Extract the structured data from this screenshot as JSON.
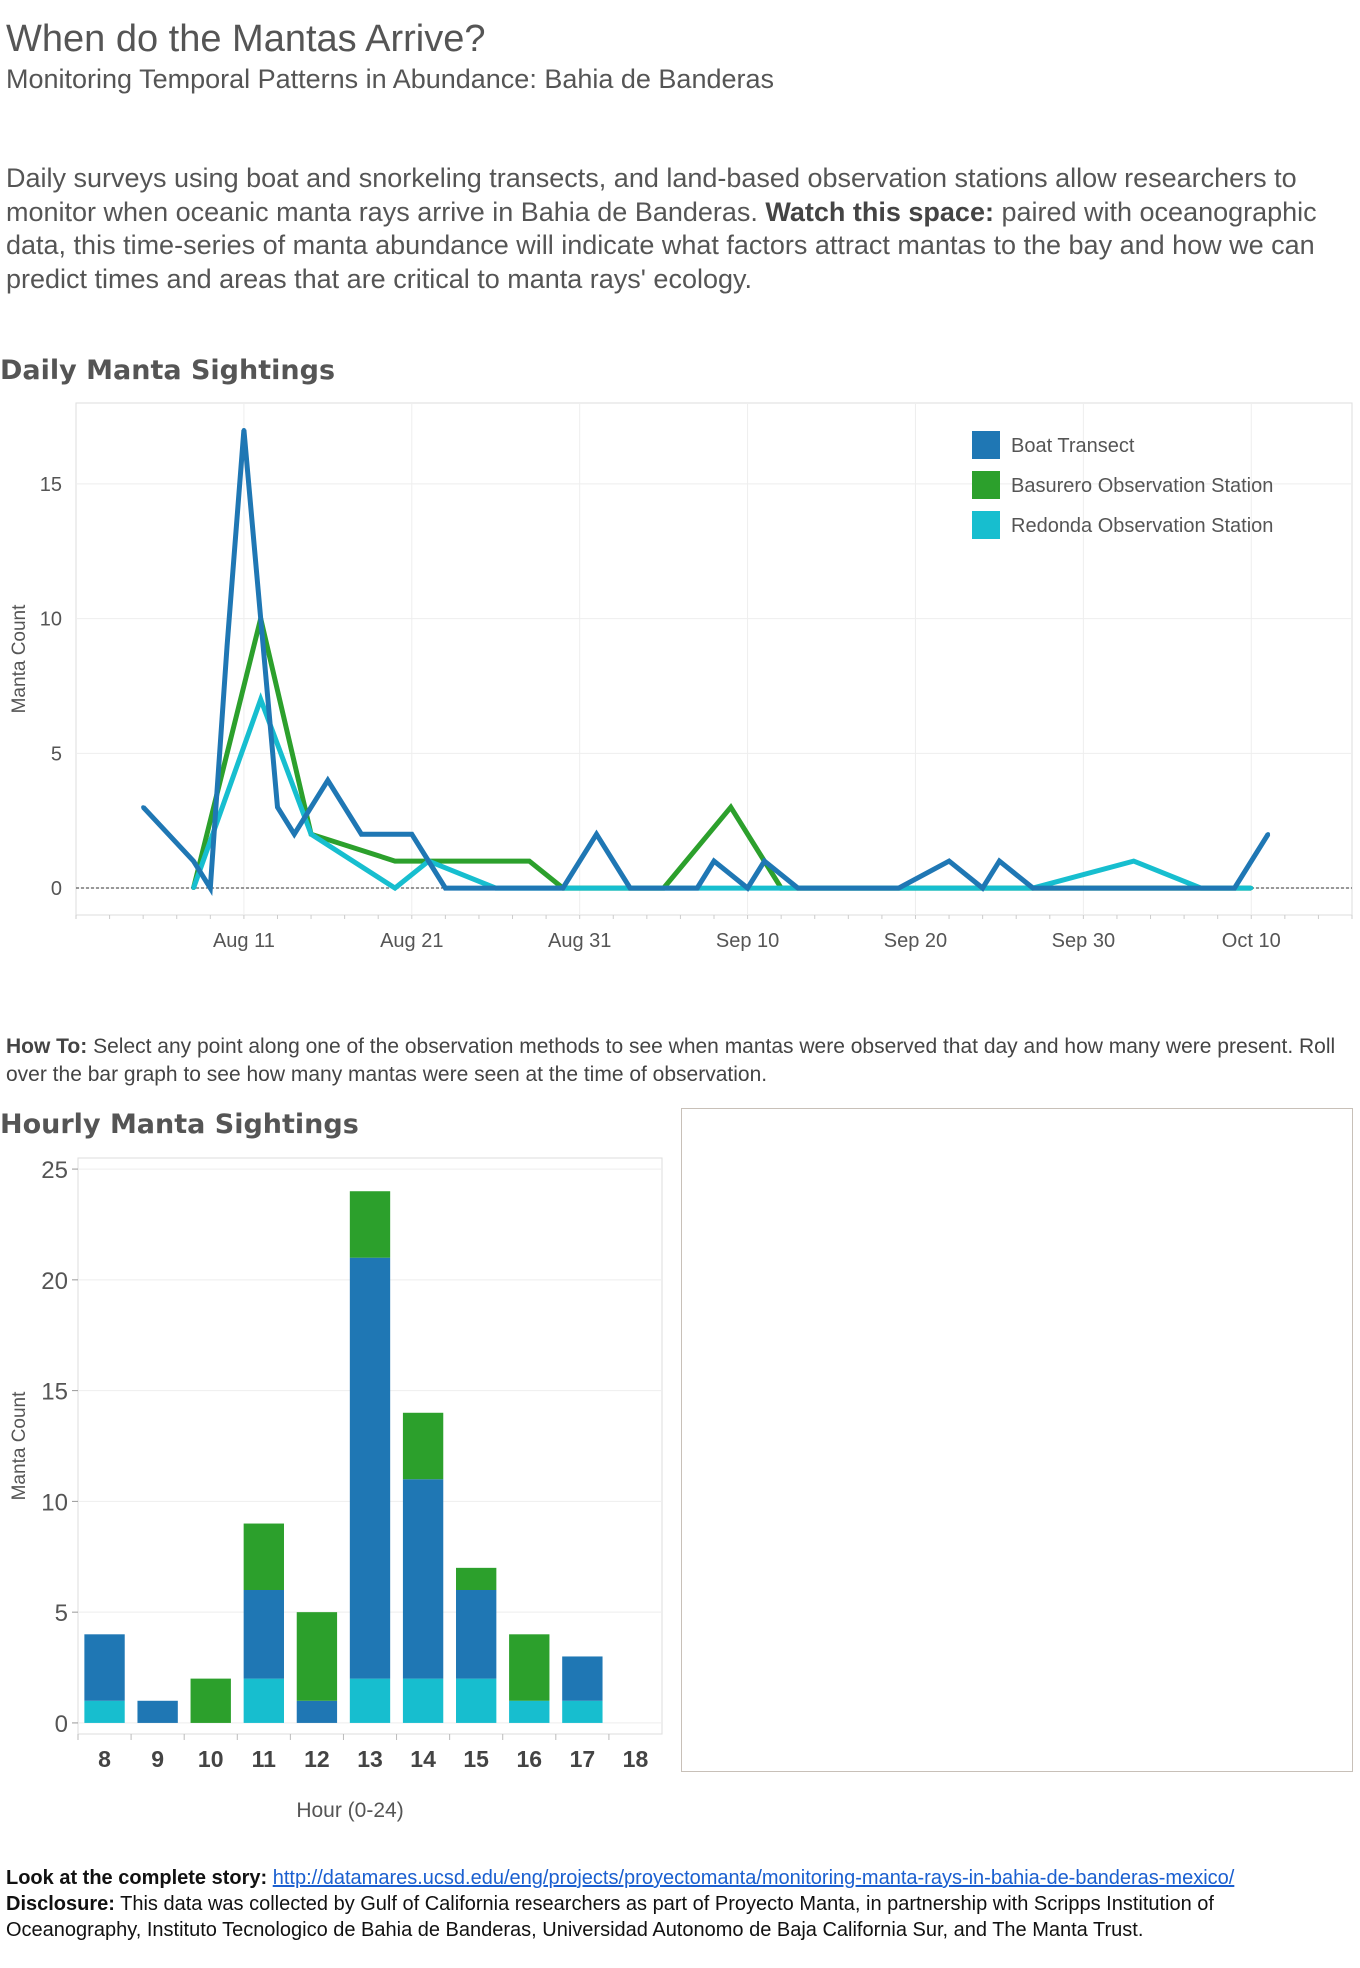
{
  "header": {
    "title": "When do the Mantas Arrive?",
    "subtitle": "Monitoring Temporal Patterns in Abundance: Bahia de Banderas",
    "intro_part1": "Daily surveys using boat and snorkeling transects, and land-based observation stations allow researchers to monitor when oceanic manta rays arrive in Bahia de Banderas. ",
    "intro_bold": "Watch this space:",
    "intro_part2": " paired with oceanographic data, this time-series of manta abundance will indicate what factors attract mantas to the bay and how we can predict times and areas that are critical to manta rays' ecology."
  },
  "howto": {
    "label": "How To:",
    "text": " Select any point along one of the observation methods to see when mantas were observed that day and how many were present. Roll over the bar graph to see how many mantas were seen at the time of observation."
  },
  "footer": {
    "story_label": "Look at the complete story:",
    "story_link": "http://datamares.ucsd.edu/eng/projects/proyectomanta/monitoring-manta-rays-in-bahia-de-banderas-mexico/",
    "disclosure_label": "Disclosure:",
    "disclosure_text": " This data was collected by Gulf of California researchers as part of Proyecto Manta, in partnership with Scripps Institution of Oceanography, Instituto Tecnologico de Bahia de Banderas, Universidad Autonomo de Baja California Sur, and The Manta Trust."
  },
  "colors": {
    "boat": "#1f77b4",
    "basurero": "#2ca02c",
    "redonda": "#17becf"
  },
  "chart_data": [
    {
      "type": "line",
      "title": "Daily Manta Sightings",
      "xlabel": "",
      "ylabel": "Manta Count",
      "x_ticks": [
        "Aug 11",
        "Aug 21",
        "Aug 31",
        "Sep 10",
        "Sep 20",
        "Sep 30",
        "Oct 10"
      ],
      "y_ticks": [
        0,
        5,
        10,
        15
      ],
      "ylim": [
        -1,
        18
      ],
      "xlim": [
        "2014-08-01",
        "2014-10-16"
      ],
      "grid": true,
      "legend": "top-right",
      "series": [
        {
          "name": "Boat Transect",
          "color": "#1f77b4",
          "points": [
            [
              "2014-08-05",
              3
            ],
            [
              "2014-08-08",
              1
            ],
            [
              "2014-08-09",
              0
            ],
            [
              "2014-08-10",
              9
            ],
            [
              "2014-08-11",
              17
            ],
            [
              "2014-08-13",
              3
            ],
            [
              "2014-08-14",
              2
            ],
            [
              "2014-08-16",
              4
            ],
            [
              "2014-08-18",
              2
            ],
            [
              "2014-08-21",
              2
            ],
            [
              "2014-08-23",
              0
            ],
            [
              "2014-08-30",
              0
            ],
            [
              "2014-09-01",
              2
            ],
            [
              "2014-09-03",
              0
            ],
            [
              "2014-09-07",
              0
            ],
            [
              "2014-09-08",
              1
            ],
            [
              "2014-09-10",
              0
            ],
            [
              "2014-09-11",
              1
            ],
            [
              "2014-09-13",
              0
            ],
            [
              "2014-09-19",
              0
            ],
            [
              "2014-09-22",
              1
            ],
            [
              "2014-09-24",
              0
            ],
            [
              "2014-09-25",
              1
            ],
            [
              "2014-09-27",
              0
            ],
            [
              "2014-10-09",
              0
            ],
            [
              "2014-10-11",
              2
            ]
          ]
        },
        {
          "name": "Basurero Observation Station",
          "color": "#2ca02c",
          "points": [
            [
              "2014-08-08",
              0
            ],
            [
              "2014-08-10",
              5
            ],
            [
              "2014-08-12",
              10
            ],
            [
              "2014-08-15",
              2
            ],
            [
              "2014-08-20",
              1
            ],
            [
              "2014-08-23",
              1
            ],
            [
              "2014-08-28",
              1
            ],
            [
              "2014-08-30",
              0
            ],
            [
              "2014-09-05",
              0
            ],
            [
              "2014-09-09",
              3
            ],
            [
              "2014-09-12",
              0
            ],
            [
              "2014-09-20",
              0
            ],
            [
              "2014-09-26",
              0
            ],
            [
              "2014-10-10",
              0
            ]
          ]
        },
        {
          "name": "Redonda Observation Station",
          "color": "#17becf",
          "points": [
            [
              "2014-08-08",
              0
            ],
            [
              "2014-08-12",
              7
            ],
            [
              "2014-08-15",
              2
            ],
            [
              "2014-08-20",
              0
            ],
            [
              "2014-08-22",
              1
            ],
            [
              "2014-08-26",
              0
            ],
            [
              "2014-09-27",
              0
            ],
            [
              "2014-10-03",
              1
            ],
            [
              "2014-10-07",
              0
            ],
            [
              "2014-10-10",
              0
            ]
          ]
        }
      ]
    },
    {
      "type": "bar",
      "stacked": true,
      "title": "Hourly Manta Sightings",
      "xlabel": "Hour (0-24)",
      "ylabel": "Manta Count",
      "categories": [
        "8",
        "9",
        "10",
        "11",
        "12",
        "13",
        "14",
        "15",
        "16",
        "17",
        "18"
      ],
      "y_ticks": [
        0,
        5,
        10,
        15,
        20,
        25
      ],
      "ylim": [
        -0.5,
        25.5
      ],
      "grid": true,
      "series": [
        {
          "name": "Redonda Observation Station",
          "color": "#17becf",
          "values": [
            1,
            0,
            0,
            2,
            0,
            2,
            2,
            2,
            1,
            1,
            0
          ]
        },
        {
          "name": "Boat Transect",
          "color": "#1f77b4",
          "values": [
            3,
            1,
            0,
            4,
            1,
            19,
            9,
            4,
            0,
            2,
            0
          ]
        },
        {
          "name": "Basurero Observation Station",
          "color": "#2ca02c",
          "values": [
            0,
            0,
            2,
            3,
            4,
            3,
            3,
            1,
            3,
            0,
            0
          ]
        }
      ]
    }
  ]
}
